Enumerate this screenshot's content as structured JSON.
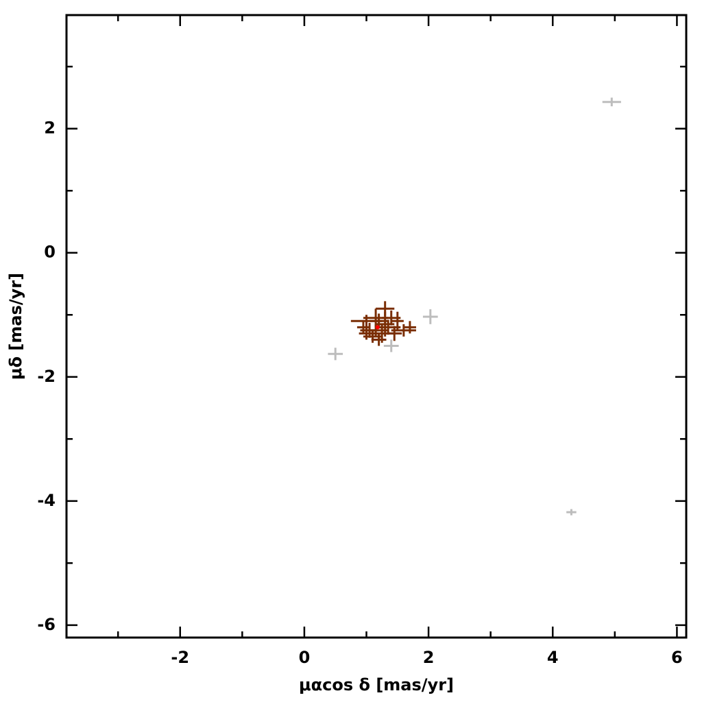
{
  "chart_data": {
    "type": "scatter",
    "xlabel": "μαcos δ [mas/yr]",
    "ylabel": "μδ [mas/yr]",
    "xlim": [
      -3.83,
      6.15
    ],
    "ylim": [
      -6.2,
      3.83
    ],
    "xticks": [
      -2,
      0,
      2,
      4,
      6
    ],
    "yticks": [
      -6,
      -4,
      -2,
      0,
      2
    ],
    "xminor": [
      -3,
      -1,
      1,
      3,
      5
    ],
    "yminor": [
      -5,
      -3,
      -1,
      1,
      3
    ],
    "series": [
      {
        "color": "#bdbdbd",
        "x": [
          4.95,
          2.03,
          0.5,
          1.4,
          4.3
        ],
        "y": [
          2.43,
          -1.03,
          -1.63,
          -1.5,
          -4.18
        ],
        "xerr": [
          0.15,
          0.12,
          0.12,
          0.12,
          0.08
        ],
        "yerr": [
          0.07,
          0.12,
          0.1,
          0.1,
          0.05
        ]
      },
      {
        "color": "#7a2e05",
        "x": [
          1.3,
          1.0,
          1.15,
          1.4,
          1.6,
          1.7,
          1.05,
          1.25,
          1.3,
          0.95,
          1.1,
          1.35,
          1.2,
          1.45,
          1.0,
          1.5,
          1.2,
          1.15
        ],
        "y": [
          -0.9,
          -1.1,
          -1.05,
          -1.05,
          -1.25,
          -1.2,
          -1.25,
          -1.3,
          -1.15,
          -1.2,
          -1.35,
          -1.2,
          -1.4,
          -1.3,
          -1.3,
          -1.1,
          -1.1,
          -1.25
        ],
        "xerr": [
          0.15,
          0.25,
          0.2,
          0.15,
          0.2,
          0.1,
          0.15,
          0.2,
          0.15,
          0.1,
          0.15,
          0.2,
          0.12,
          0.12,
          0.12,
          0.1,
          0.15,
          0.2
        ],
        "yerr": [
          0.12,
          0.1,
          0.15,
          0.12,
          0.1,
          0.1,
          0.12,
          0.15,
          0.2,
          0.1,
          0.1,
          0.12,
          0.1,
          0.12,
          0.1,
          0.15,
          0.12,
          0.1
        ]
      },
      {
        "color": "#ff0000",
        "x": [
          1.18
        ],
        "y": [
          -1.2
        ]
      }
    ]
  }
}
